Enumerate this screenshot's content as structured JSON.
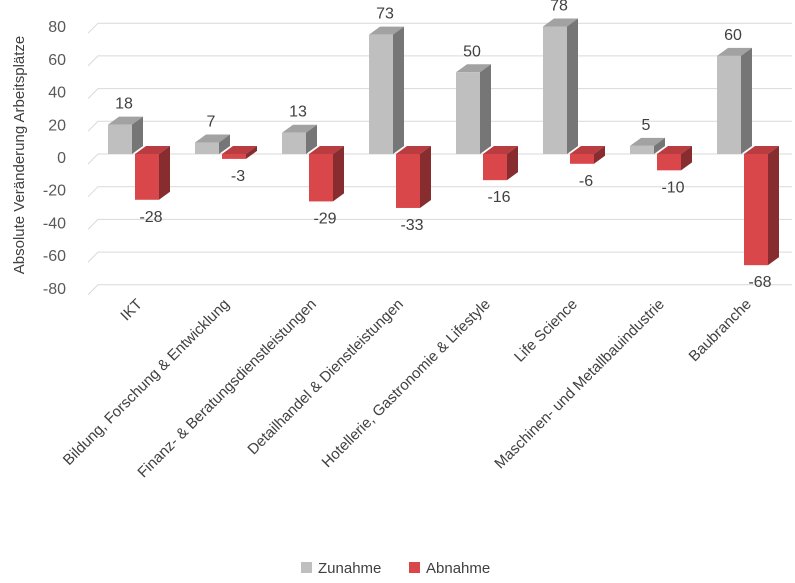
{
  "chart_data": {
    "type": "bar",
    "title": "",
    "xlabel": "",
    "ylabel": "Absolute Veränderung Arbeitsplätze",
    "ylim": [
      -80,
      80
    ],
    "yticks": [
      80,
      60,
      40,
      20,
      0,
      -20,
      -40,
      -60,
      -80
    ],
    "grid": true,
    "legend_position": "bottom",
    "categories": [
      "IKT",
      "Bildung, Forschung & Entwicklung",
      "Finanz- & Beratungsdienstleistungen",
      "Detailhandel & Dienstleistungen",
      "Hotellerie, Gastronomie & Lifestyle",
      "Life Science",
      "Maschinen- und Metallbauindustrie",
      "Baubranche"
    ],
    "series": [
      {
        "name": "Zunahme",
        "color": "#bfbfbf",
        "values": [
          18,
          7,
          13,
          73,
          50,
          78,
          5,
          60
        ]
      },
      {
        "name": "Abnahme",
        "color": "#d9474b",
        "values": [
          -28,
          -3,
          -29,
          -33,
          -16,
          -6,
          -10,
          -68
        ]
      }
    ]
  }
}
